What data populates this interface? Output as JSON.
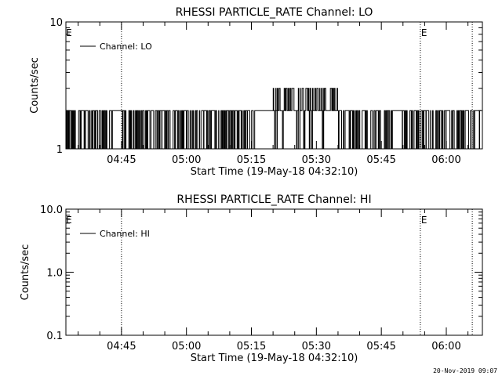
{
  "chart_data": [
    {
      "type": "line",
      "title": "RHESSI PARTICLE_RATE Channel: LO",
      "xlabel": "Start Time (19-May-18 04:32:10)",
      "ylabel": "Counts/sec",
      "y_scale": "log",
      "ylim": [
        1,
        10
      ],
      "y_ticks": [
        "1",
        "10"
      ],
      "x_ticks": [
        "04:45",
        "05:00",
        "05:15",
        "05:30",
        "05:45",
        "06:00"
      ],
      "grid": false,
      "legend_position": "top-left",
      "series": [
        {
          "name": "Channel: LO",
          "color": "#000000",
          "x_minutes_range": [
            "04:32:10",
            "06:08:00"
          ],
          "values_description_levels": [
            1,
            2,
            3
          ],
          "baseline_level": 2,
          "elevated_segment": {
            "from": "05:20",
            "to": "05:35",
            "level": 3
          }
        }
      ],
      "markers": [
        {
          "label": "E",
          "time": "04:32"
        },
        {
          "label": "",
          "time": "04:45"
        },
        {
          "label": "E",
          "time": "05:54"
        },
        {
          "label": "",
          "time": "06:06"
        }
      ]
    },
    {
      "type": "line",
      "title": "RHESSI PARTICLE_RATE Channel: HI",
      "xlabel": "Start Time (19-May-18 04:32:10)",
      "ylabel": "Counts/sec",
      "y_scale": "log",
      "ylim": [
        0.1,
        10
      ],
      "y_ticks": [
        "0.1",
        "1.0",
        "10.0"
      ],
      "x_ticks": [
        "04:45",
        "05:00",
        "05:15",
        "05:30",
        "05:45",
        "06:00"
      ],
      "grid": false,
      "legend_position": "top-left",
      "series": [
        {
          "name": "Channel: HI",
          "color": "#000000",
          "values": []
        }
      ],
      "markers": [
        {
          "label": "E",
          "time": "04:32"
        },
        {
          "label": "",
          "time": "04:45"
        },
        {
          "label": "E",
          "time": "05:54"
        },
        {
          "label": "",
          "time": "06:06"
        }
      ]
    }
  ],
  "footer": "20-Nov-2019 09:07"
}
